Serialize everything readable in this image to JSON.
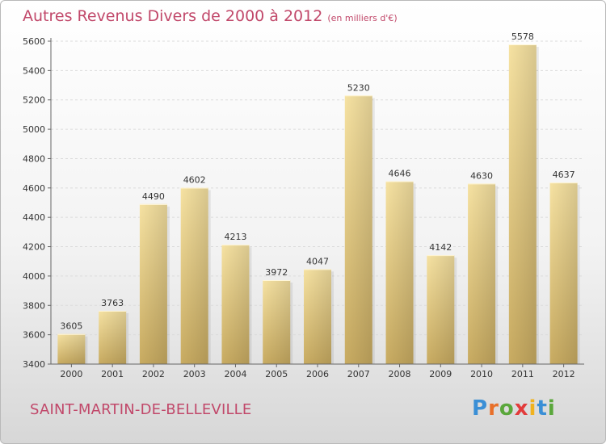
{
  "title": "Autres Revenus Divers de 2000 à 2012",
  "unit": "(en milliers d'€)",
  "place": "SAINT-MARTIN-DE-BELLEVILLE",
  "logo": {
    "letters": [
      "P",
      "r",
      "o",
      "x",
      "i",
      "t",
      "i"
    ],
    "colors": [
      "#3a8fd6",
      "#e8702a",
      "#5aa73b",
      "#e23b3b",
      "#f0b21f",
      "#3a8fd6",
      "#5aa73b"
    ]
  },
  "colors": {
    "accent": "#c1486a",
    "bar_light": "#f5e1a0",
    "bar_dark": "#c9ac62"
  },
  "chart_data": {
    "type": "bar",
    "categories": [
      "2000",
      "2001",
      "2002",
      "2003",
      "2004",
      "2005",
      "2006",
      "2007",
      "2008",
      "2009",
      "2010",
      "2011",
      "2012"
    ],
    "values": [
      3605,
      3763,
      4490,
      4602,
      4213,
      3972,
      4047,
      5230,
      4646,
      4142,
      4630,
      5578,
      4637
    ],
    "ylim": [
      3400,
      5600
    ],
    "yticks": [
      3400,
      3600,
      3800,
      4000,
      4200,
      4400,
      4600,
      4800,
      5000,
      5200,
      5400,
      5600
    ],
    "grid": true,
    "legend": "none"
  }
}
